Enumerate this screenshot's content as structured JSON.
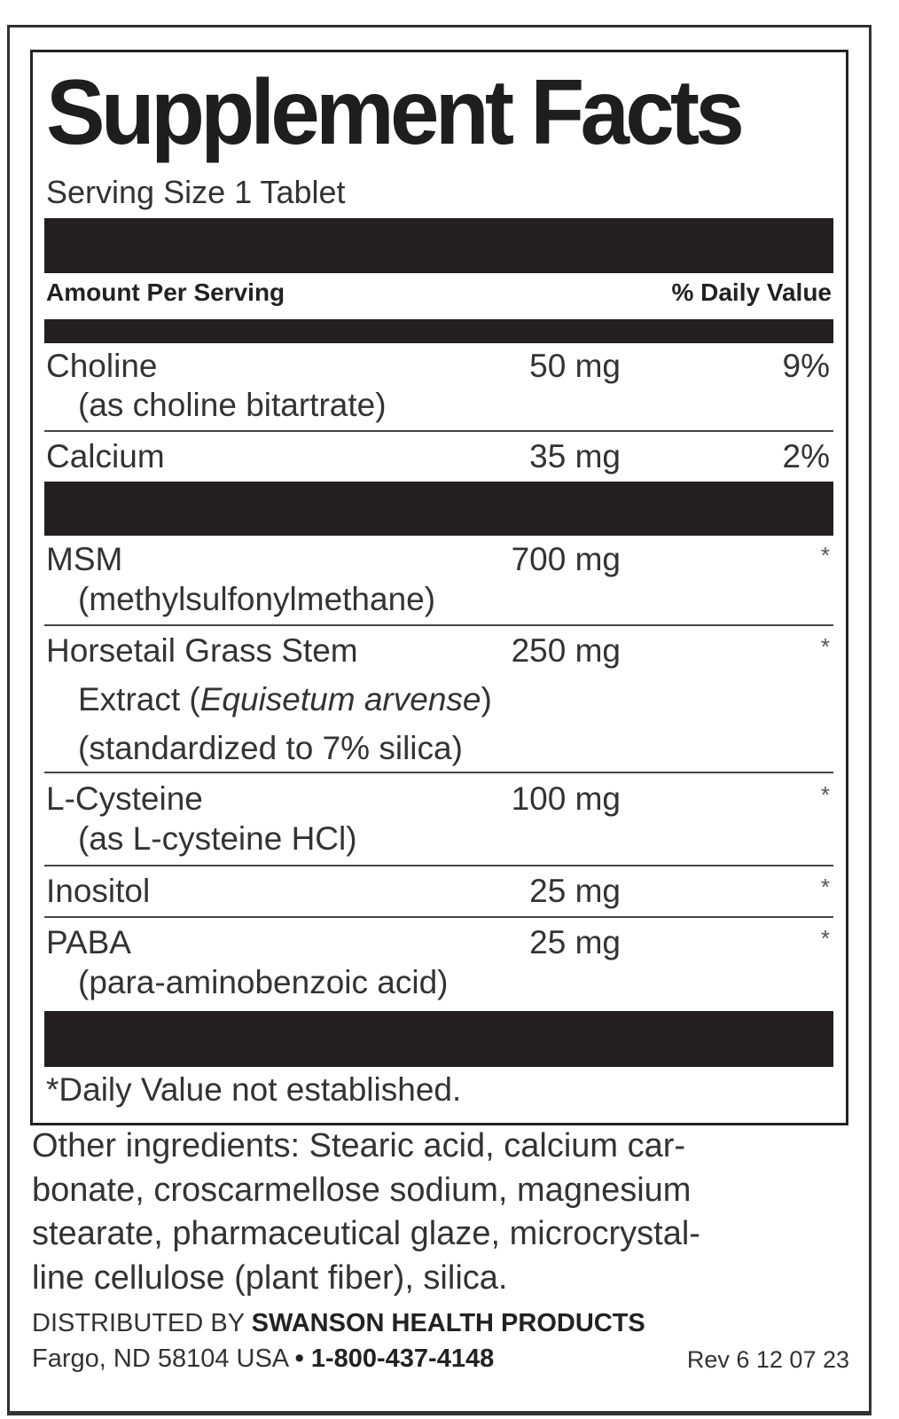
{
  "title": "Supplement Facts",
  "serving_size": "Serving Size 1 Tablet",
  "header": {
    "amount": "Amount Per Serving",
    "dv": "% Daily Value"
  },
  "rows": [
    {
      "name": "Choline",
      "sub": [
        "(as choline bitartrate)"
      ],
      "amount": "50 mg",
      "dv": "9%"
    },
    {
      "name": "Calcium",
      "sub": [],
      "amount": "35 mg",
      "dv": "2%"
    },
    {
      "name": "MSM",
      "sub": [
        "(methylsulfonylmethane)"
      ],
      "amount": "700 mg",
      "dv": "*"
    },
    {
      "name": "Horsetail Grass Stem",
      "sub": [
        "Extract (",
        "Equisetum arvense",
        ")",
        "(standardized to 7% silica)"
      ],
      "amount": "250 mg",
      "dv": "*"
    },
    {
      "name": "L-Cysteine",
      "sub": [
        "(as L-cysteine HCl)"
      ],
      "amount": "100 mg",
      "dv": "*"
    },
    {
      "name": "Inositol",
      "sub": [],
      "amount": "25 mg",
      "dv": "*"
    },
    {
      "name": "PABA",
      "sub": [
        "(para-aminobenzoic acid)"
      ],
      "amount": "25 mg",
      "dv": "*"
    }
  ],
  "footnote": "*Daily Value not established.",
  "other_ingredients": "Other ingredients: Stearic acid, calcium carbonate, croscarmellose sodium, magnesium stearate, pharmaceutical glaze, microcrystalline cellulose (plant fiber), silica.",
  "other_lines": [
    "Other ingredients: Stearic acid, calcium car-",
    "bonate, croscarmellose sodium, magnesium",
    "stearate, pharmaceutical glaze, microcrystal-",
    "line cellulose (plant fiber), silica."
  ],
  "distributor": {
    "prefix": "DISTRIBUTED BY",
    "name": "SWANSON HEALTH PRODUCTS",
    "address": "Fargo, ND 58104 USA",
    "bullet": "•",
    "phone": "1-800-437-4148",
    "rev": "Rev 6 12 07 23"
  }
}
